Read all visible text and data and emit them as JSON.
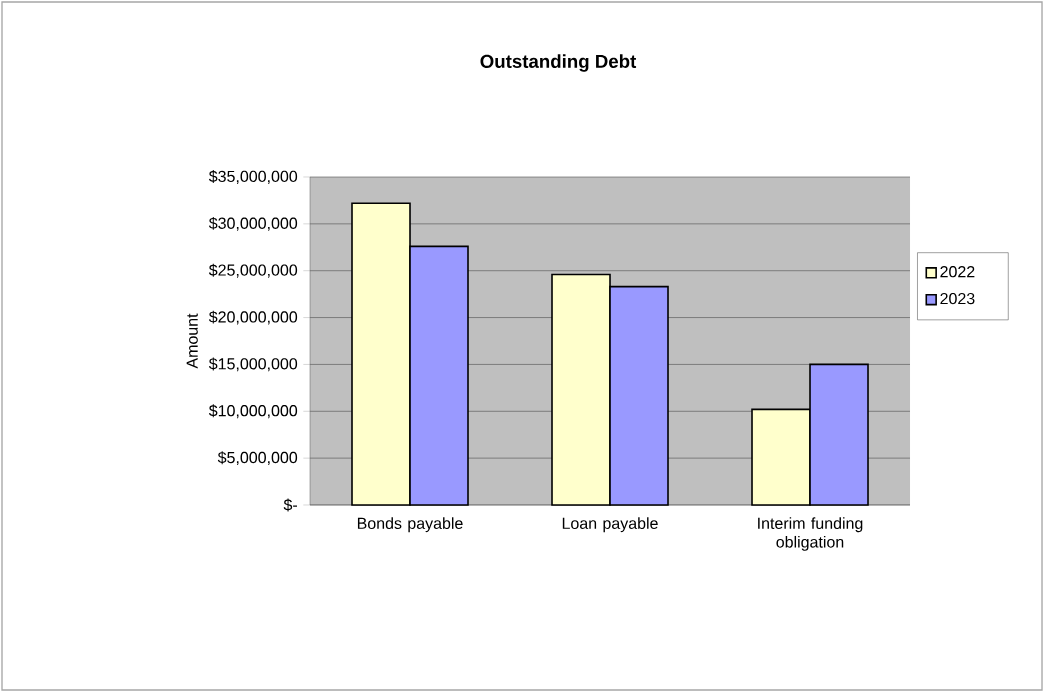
{
  "chart_data": {
    "type": "bar",
    "title": "Outstanding Debt",
    "ylabel": "Amount",
    "categories": [
      "Bonds payable",
      "Loan payable",
      "Interim funding obligation"
    ],
    "series": [
      {
        "name": "2022",
        "color": "#ffffcc",
        "values": [
          32200000,
          24600000,
          10200000
        ]
      },
      {
        "name": "2023",
        "color": "#9999ff",
        "values": [
          27600000,
          23300000,
          15000000
        ]
      }
    ],
    "ylim": [
      0,
      35000000
    ],
    "yticks": [
      {
        "value": 0,
        "label": "$-"
      },
      {
        "value": 5000000,
        "label": "$5,000,000"
      },
      {
        "value": 10000000,
        "label": "$10,000,000"
      },
      {
        "value": 15000000,
        "label": "$15,000,000"
      },
      {
        "value": 20000000,
        "label": "$20,000,000"
      },
      {
        "value": 25000000,
        "label": "$25,000,000"
      },
      {
        "value": 30000000,
        "label": "$30,000,000"
      },
      {
        "value": 35000000,
        "label": "$35,000,000"
      }
    ],
    "grid": "y",
    "legend": "right"
  }
}
